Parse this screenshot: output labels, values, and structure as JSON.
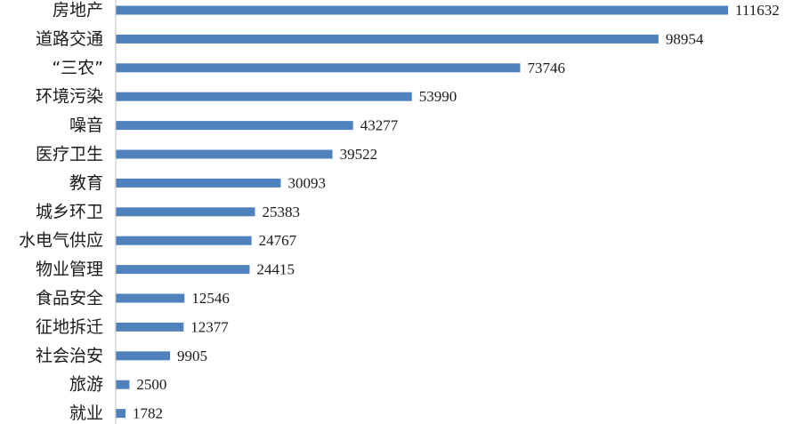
{
  "chart_data": {
    "type": "bar",
    "orientation": "horizontal",
    "title": "",
    "xlabel": "",
    "ylabel": "",
    "categories": [
      "房地产",
      "道路交通",
      "“三农”",
      "环境污染",
      "噪音",
      "医疗卫生",
      "教育",
      "城乡环卫",
      "水电气供应",
      "物业管理",
      "食品安全",
      "征地拆迁",
      "社会治安",
      "旅游",
      "就业"
    ],
    "values": [
      111632,
      98954,
      73746,
      53990,
      43277,
      39522,
      30093,
      25383,
      24767,
      24415,
      12546,
      12377,
      9905,
      2500,
      1782
    ],
    "value_labels": [
      "111632",
      "98954",
      "73746",
      "53990",
      "43277",
      "39522",
      "30093",
      "25383",
      "24767",
      "24415",
      "12546",
      "12377",
      "9905",
      "2500",
      "1782"
    ],
    "xlim": [
      0,
      116000
    ],
    "grid": false,
    "legend": "none",
    "bar_color": "#4f81bd",
    "axis_color": "#bfbfbf"
  }
}
